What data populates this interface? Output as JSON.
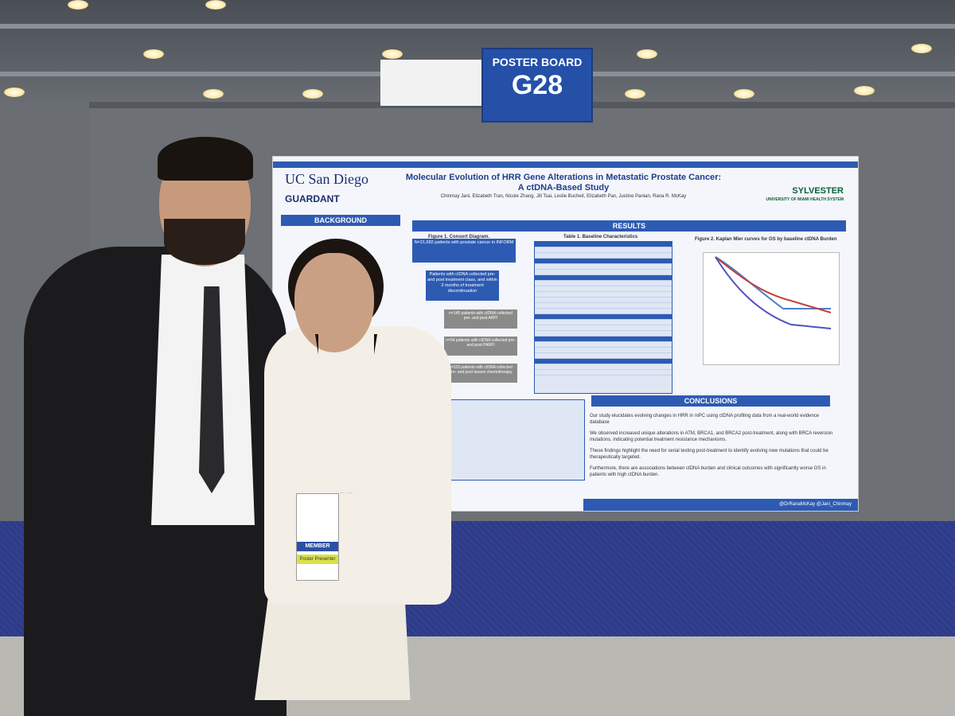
{
  "sign": {
    "line1": "POSTER BOARD",
    "line2": "G28"
  },
  "poster": {
    "logo_left_1": "UC San Diego",
    "logo_left_2": "GUARDANT",
    "logo_right": "SYLVESTER",
    "logo_right_sub": "UNIVERSITY OF MIAMI HEALTH SYSTEM",
    "title_1": "Molecular Evolution of HRR Gene Alterations in Metastatic Prostate Cancer:",
    "title_2": "A ctDNA-Based Study",
    "authors": "Chinmay Jani, Elizabeth Tran, Nicole Zhang, Jill Tsai, Leslie Bucheit, Elizabeth Pan, Justine Panian, Rana R. McKay",
    "background_head": "BACKGROUND",
    "results_head": "RESULTS",
    "conclusions_head": "CONCLUSIONS",
    "fig1": "Figure 1. Consort Diagram.",
    "table1": "Table 1. Baseline Characteristics",
    "fig2": "Figure 2. Kaplan Mier curves for OS by baseline ctDNA Burden",
    "box_main": "N=21,682 patients with prostate cancer in INFORM",
    "box_2": "Patients with ctDNA collected pre- and post treatment class, and within 3 months of treatment discontinuation",
    "box_arpi": "n=145 patients with ctDNA collected pre- and post ARPI",
    "box_parpi": "n=54 patients with ctDNA collected pre- and post PARPi",
    "box_taxane": "n=115 patients with ctDNA collected pre- and post taxane chemotherapy",
    "conclusion_1": "Our study elucidates evolving changes in HRR in mPC using ctDNA profiling data from a real-world evidence database",
    "conclusion_2": "We observed increased unique alterations in ATM, BRCA1, and BRCA2 post-treatment, along with BRCA reversion mutations, indicating potential treatment resistance mechanisms.",
    "conclusion_3": "These findings highlight the need for serial testing post-treatment to identify evolving new mutations that could be therapeutically targeted.",
    "conclusion_4": "Furthermore, there are associations between ctDNA burden and clinical outcomes with significantly worse OS in patients with high ctDNA burden.",
    "footer": "@DrRanaMcKay @Jani_Chinmay"
  },
  "badge": {
    "member": "MEMBER",
    "presenter": "Poster Presenter"
  }
}
